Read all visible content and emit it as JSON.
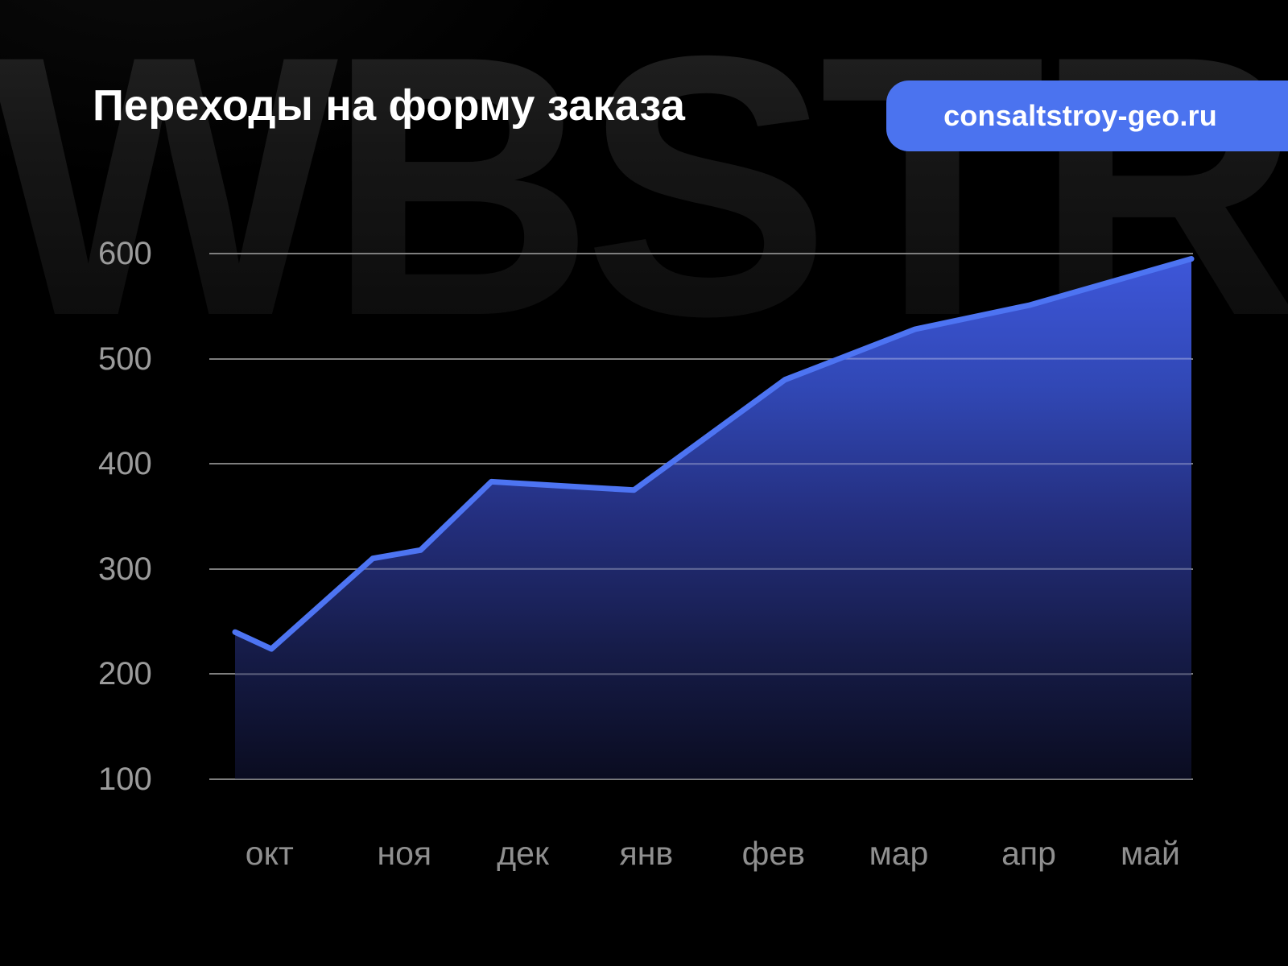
{
  "page": {
    "background": "#000000",
    "watermark_text": "WBSTR"
  },
  "header": {
    "title": "Переходы на форму заказа"
  },
  "badge": {
    "label": "consaltstroy-geo.ru",
    "background": "#4b73ef",
    "text_color": "#ffffff"
  },
  "chart_data": {
    "type": "area",
    "title": "Переходы на форму заказа",
    "x_tick_labels": [
      "окт",
      "ноя",
      "дек",
      "янв",
      "фев",
      "мар",
      "апр",
      "май"
    ],
    "x_tick_positions": [
      0.036,
      0.177,
      0.301,
      0.43,
      0.563,
      0.694,
      0.83,
      0.957
    ],
    "y_ticks": [
      100,
      200,
      300,
      400,
      500,
      600
    ],
    "ylim": [
      100,
      600
    ],
    "grid": true,
    "legend": false,
    "series": [
      {
        "name": "Переходы на форму заказа",
        "points": [
          {
            "x": 0.0,
            "value": 240
          },
          {
            "x": 0.038,
            "value": 224
          },
          {
            "x": 0.144,
            "value": 310
          },
          {
            "x": 0.194,
            "value": 318
          },
          {
            "x": 0.268,
            "value": 383
          },
          {
            "x": 0.417,
            "value": 375
          },
          {
            "x": 0.575,
            "value": 480
          },
          {
            "x": 0.711,
            "value": 528
          },
          {
            "x": 0.831,
            "value": 551
          },
          {
            "x": 1.0,
            "value": 595
          }
        ]
      }
    ],
    "month_values_approx": {
      "окт": 224,
      "ноя": 316,
      "дек": 380,
      "янв": 376,
      "фев": 472,
      "мар": 522,
      "апр": 551,
      "май": 585
    },
    "line_color": "#4d74f2",
    "fill_gradient": [
      "#3e57da",
      "#3148b6",
      "#242f7f",
      "#161c49",
      "#0a0c20"
    ],
    "gridline_color": "#7e7e7e",
    "inner_gridline_color": "rgba(255,255,255,0.32)",
    "y_tick_color": "#9b9b9b",
    "x_tick_color": "#8f8f8f"
  }
}
